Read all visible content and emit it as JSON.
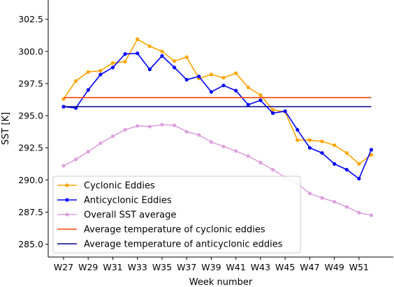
{
  "chart_data": {
    "type": "line",
    "xlabel": "Week number",
    "ylabel": "SST [K]",
    "x": [
      "W27",
      "W28",
      "W29",
      "W30",
      "W31",
      "W32",
      "W33",
      "W34",
      "W35",
      "W36",
      "W37",
      "W38",
      "W39",
      "W40",
      "W41",
      "W42",
      "W43",
      "W44",
      "W45",
      "W46",
      "W47",
      "W48",
      "W49",
      "W50",
      "W51",
      "W52"
    ],
    "x_tick_labels": [
      "W27",
      "W29",
      "W31",
      "W33",
      "W35",
      "W37",
      "W39",
      "W41",
      "W43",
      "W45",
      "W47",
      "W49",
      "W51"
    ],
    "ylim": [
      284.0,
      304.0
    ],
    "y_ticks": [
      285.0,
      287.5,
      290.0,
      292.5,
      295.0,
      297.5,
      300.0,
      302.5
    ],
    "y_tick_labels": [
      "285.0",
      "287.5",
      "290.0",
      "292.5",
      "295.0",
      "297.5",
      "300.0",
      "302.5"
    ],
    "grid": false,
    "legend_position": "lower-left",
    "series": [
      {
        "name": "Cyclonic Eddies",
        "color": "#ffa500",
        "marker": "dot",
        "values": [
          296.3,
          297.7,
          298.4,
          298.5,
          299.1,
          299.2,
          300.95,
          300.4,
          300.0,
          299.25,
          299.55,
          297.9,
          298.2,
          297.95,
          298.3,
          297.2,
          296.6,
          295.45,
          295.3,
          293.1,
          293.1,
          293.0,
          292.7,
          292.1,
          291.25,
          291.95
        ]
      },
      {
        "name": "Anticyclonic Eddies",
        "color": "#0000ff",
        "marker": "dot",
        "values": [
          295.7,
          295.6,
          297.0,
          298.2,
          298.75,
          299.8,
          299.85,
          298.6,
          299.65,
          298.75,
          297.8,
          298.05,
          296.85,
          297.35,
          296.95,
          295.85,
          296.2,
          295.2,
          295.35,
          293.9,
          292.5,
          292.1,
          291.25,
          290.8,
          290.1,
          292.35
        ]
      },
      {
        "name": "Overall SST average",
        "color": "#dda0dd",
        "marker": "dot",
        "values": [
          291.1,
          291.6,
          292.2,
          292.85,
          293.4,
          293.9,
          294.2,
          294.15,
          294.3,
          294.25,
          293.75,
          293.5,
          292.95,
          292.6,
          292.25,
          291.85,
          291.35,
          290.8,
          290.2,
          289.7,
          288.95,
          288.6,
          288.3,
          287.9,
          287.45,
          287.25
        ]
      },
      {
        "name": "Average temperature of cyclonic eddies",
        "color": "#ff4500",
        "marker": "none",
        "constant": 296.4
      },
      {
        "name": "Average temperature of anticyclonic eddies",
        "color": "#00008b",
        "marker": "none",
        "constant": 295.7
      }
    ]
  }
}
